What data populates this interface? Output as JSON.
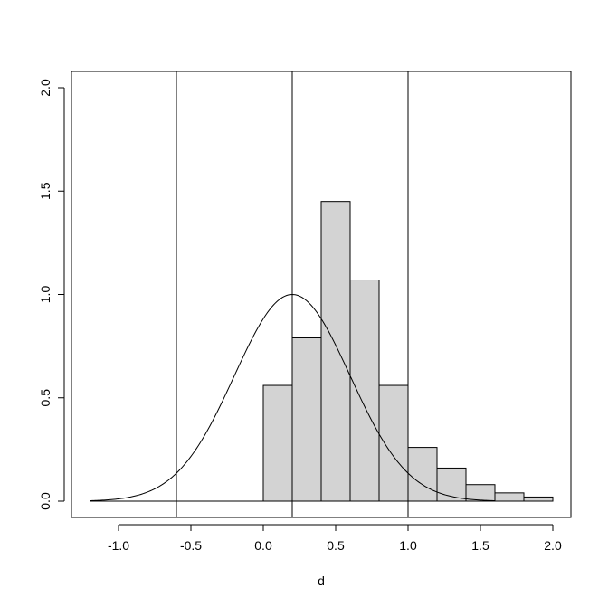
{
  "chart_data": {
    "type": "bar",
    "subtype": "histogram with density curve",
    "xlabel": "d",
    "ylabel": "",
    "title": "",
    "xlim": [
      -1.3,
      2.1
    ],
    "ylim": [
      0,
      2.1
    ],
    "x_ticks": [
      -1.0,
      -0.5,
      0.0,
      0.5,
      1.0,
      1.5,
      2.0
    ],
    "x_tick_labels": [
      "-1.0",
      "-0.5",
      "0.0",
      "0.5",
      "1.0",
      "1.5",
      "2.0"
    ],
    "y_ticks": [
      0.0,
      0.5,
      1.0,
      1.5,
      2.0
    ],
    "y_tick_labels": [
      "0.0",
      "0.5",
      "1.0",
      "1.5",
      "2.0"
    ],
    "grid": false,
    "bars": [
      {
        "x0": 0.0,
        "x1": 0.2,
        "value": 0.56
      },
      {
        "x0": 0.2,
        "x1": 0.4,
        "value": 0.79
      },
      {
        "x0": 0.4,
        "x1": 0.6,
        "value": 1.45
      },
      {
        "x0": 0.6,
        "x1": 0.8,
        "value": 1.07
      },
      {
        "x0": 0.8,
        "x1": 1.0,
        "value": 0.56
      },
      {
        "x0": 1.0,
        "x1": 1.2,
        "value": 0.26
      },
      {
        "x0": 1.2,
        "x1": 1.4,
        "value": 0.16
      },
      {
        "x0": 1.4,
        "x1": 1.6,
        "value": 0.08
      },
      {
        "x0": 1.6,
        "x1": 1.8,
        "value": 0.04
      },
      {
        "x0": 1.8,
        "x1": 2.0,
        "value": 0.02
      }
    ],
    "bar_color": "#d3d3d3",
    "density_curve": {
      "type": "normal",
      "mean": 0.2,
      "sd": 0.4,
      "x_range": [
        -1.2,
        1.6
      ]
    },
    "baseline": {
      "x0": -1.2,
      "x1": 0.0,
      "y": 0.0
    },
    "vertical_lines": [
      -0.6,
      0.2,
      1.0
    ]
  }
}
